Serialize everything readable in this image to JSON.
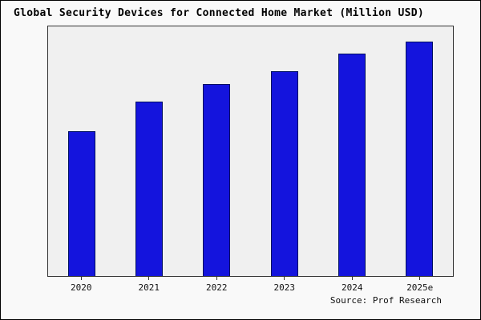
{
  "figure": {
    "title": "Global Security Devices for Connected Home Market (Million USD)",
    "source": "Source: Prof Research"
  },
  "chart_data": {
    "type": "bar",
    "title": "Global Security Devices for Connected Home Market (Million USD)",
    "categories": [
      "2020",
      "2021",
      "2022",
      "2023",
      "2024",
      "2025e"
    ],
    "values": [
      58,
      70,
      77,
      82,
      89,
      94
    ],
    "xlabel": "",
    "ylabel": "",
    "ylim": [
      0,
      100
    ],
    "y_axis_labels_visible": false,
    "grid": false,
    "legend": false,
    "bar_color": "#1414dd",
    "bar_border_color": "#001060",
    "plot_background": "#f0f0f0",
    "annotation": "Source: Prof Research"
  }
}
